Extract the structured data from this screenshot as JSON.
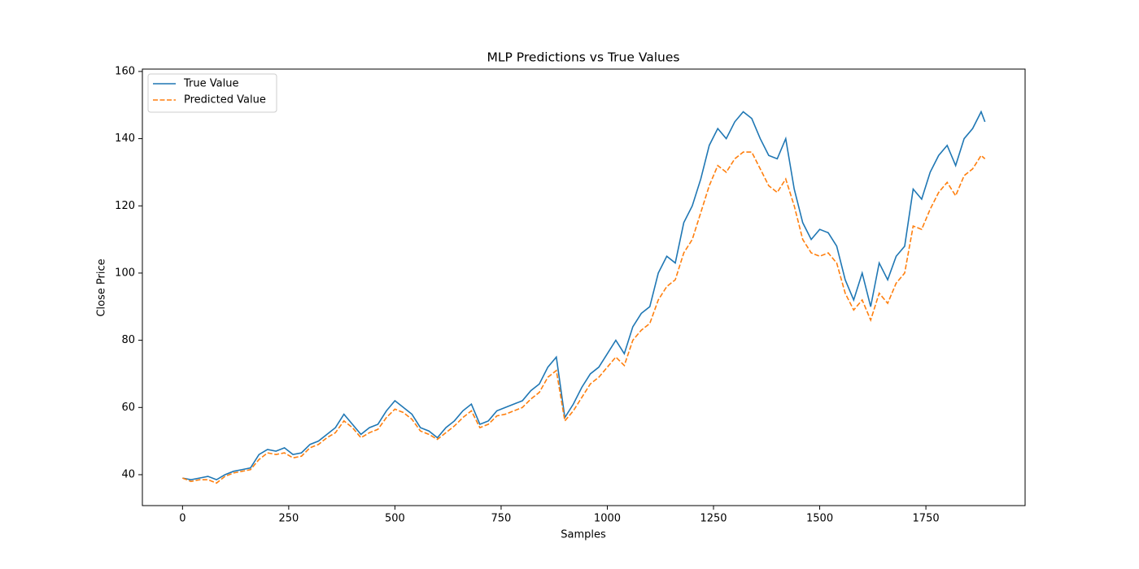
{
  "chart_data": {
    "type": "line",
    "title": "MLP Predictions vs True Values",
    "xlabel": "Samples",
    "ylabel": "Close Price",
    "x": [
      0,
      20,
      40,
      60,
      80,
      100,
      120,
      140,
      160,
      180,
      200,
      220,
      240,
      260,
      280,
      300,
      320,
      340,
      360,
      380,
      400,
      420,
      440,
      460,
      480,
      500,
      520,
      540,
      560,
      580,
      600,
      620,
      640,
      660,
      680,
      700,
      720,
      740,
      760,
      780,
      800,
      820,
      840,
      860,
      880,
      900,
      920,
      940,
      960,
      980,
      1000,
      1020,
      1040,
      1060,
      1080,
      1100,
      1120,
      1140,
      1160,
      1180,
      1200,
      1220,
      1240,
      1260,
      1280,
      1300,
      1320,
      1340,
      1360,
      1380,
      1400,
      1420,
      1440,
      1460,
      1480,
      1500,
      1520,
      1540,
      1560,
      1580,
      1600,
      1620,
      1640,
      1660,
      1680,
      1700,
      1720,
      1740,
      1760,
      1780,
      1800,
      1820,
      1840,
      1860,
      1880,
      1889
    ],
    "series": [
      {
        "name": "True Value",
        "color": "#1f77b4",
        "dash": false,
        "values": [
          39,
          38.5,
          39,
          39.5,
          38.5,
          40,
          41,
          41.5,
          42,
          46,
          47.5,
          47,
          48,
          46,
          46.5,
          49,
          50,
          52,
          54,
          58,
          55,
          52,
          54,
          55,
          59,
          62,
          60,
          58,
          54,
          53,
          51,
          54,
          56,
          59,
          61,
          55,
          56,
          59,
          60,
          61,
          62,
          65,
          67,
          72,
          75,
          57,
          61,
          66,
          70,
          72,
          76,
          80,
          76,
          84,
          88,
          90,
          100,
          105,
          103,
          115,
          120,
          128,
          138,
          143,
          140,
          145,
          148,
          146,
          140,
          135,
          134,
          140,
          125,
          115,
          110,
          113,
          112,
          108,
          98,
          92,
          100,
          90,
          103,
          98,
          105,
          108,
          125,
          122,
          130,
          135,
          138,
          132,
          140,
          143,
          148,
          145
        ]
      },
      {
        "name": "Predicted Value",
        "color": "#ff7f0e",
        "dash": true,
        "values": [
          39,
          38,
          38.5,
          38.5,
          37.5,
          39.5,
          40.5,
          41,
          41.5,
          44.5,
          46.5,
          46,
          46.5,
          45,
          45.5,
          48,
          49,
          51,
          52.5,
          56,
          54,
          51,
          52.5,
          53.5,
          57,
          59.5,
          58.5,
          56.5,
          53,
          52,
          50.5,
          52.5,
          54.5,
          57,
          59,
          54,
          55,
          57.5,
          58,
          59,
          60,
          62.5,
          64.5,
          69,
          71,
          56,
          59,
          63,
          67,
          69,
          72,
          75,
          72.5,
          80,
          83,
          85,
          92,
          96,
          98,
          106,
          110,
          118,
          126,
          132,
          130,
          134,
          136,
          136,
          131,
          126,
          124,
          128,
          120,
          110,
          106,
          105,
          106,
          103,
          94,
          89,
          92,
          86,
          94,
          91,
          97,
          100,
          114,
          113,
          119,
          124,
          127,
          123,
          129,
          131,
          135,
          134
        ]
      }
    ],
    "xlim": [
      -94.5,
      1983.5
    ],
    "ylim": [
      30.8,
      160.7
    ],
    "xticks": [
      0,
      250,
      500,
      750,
      1000,
      1250,
      1500,
      1750
    ],
    "yticks": [
      40,
      60,
      80,
      100,
      120,
      140,
      160
    ],
    "legend": "upper-left",
    "grid": false
  }
}
